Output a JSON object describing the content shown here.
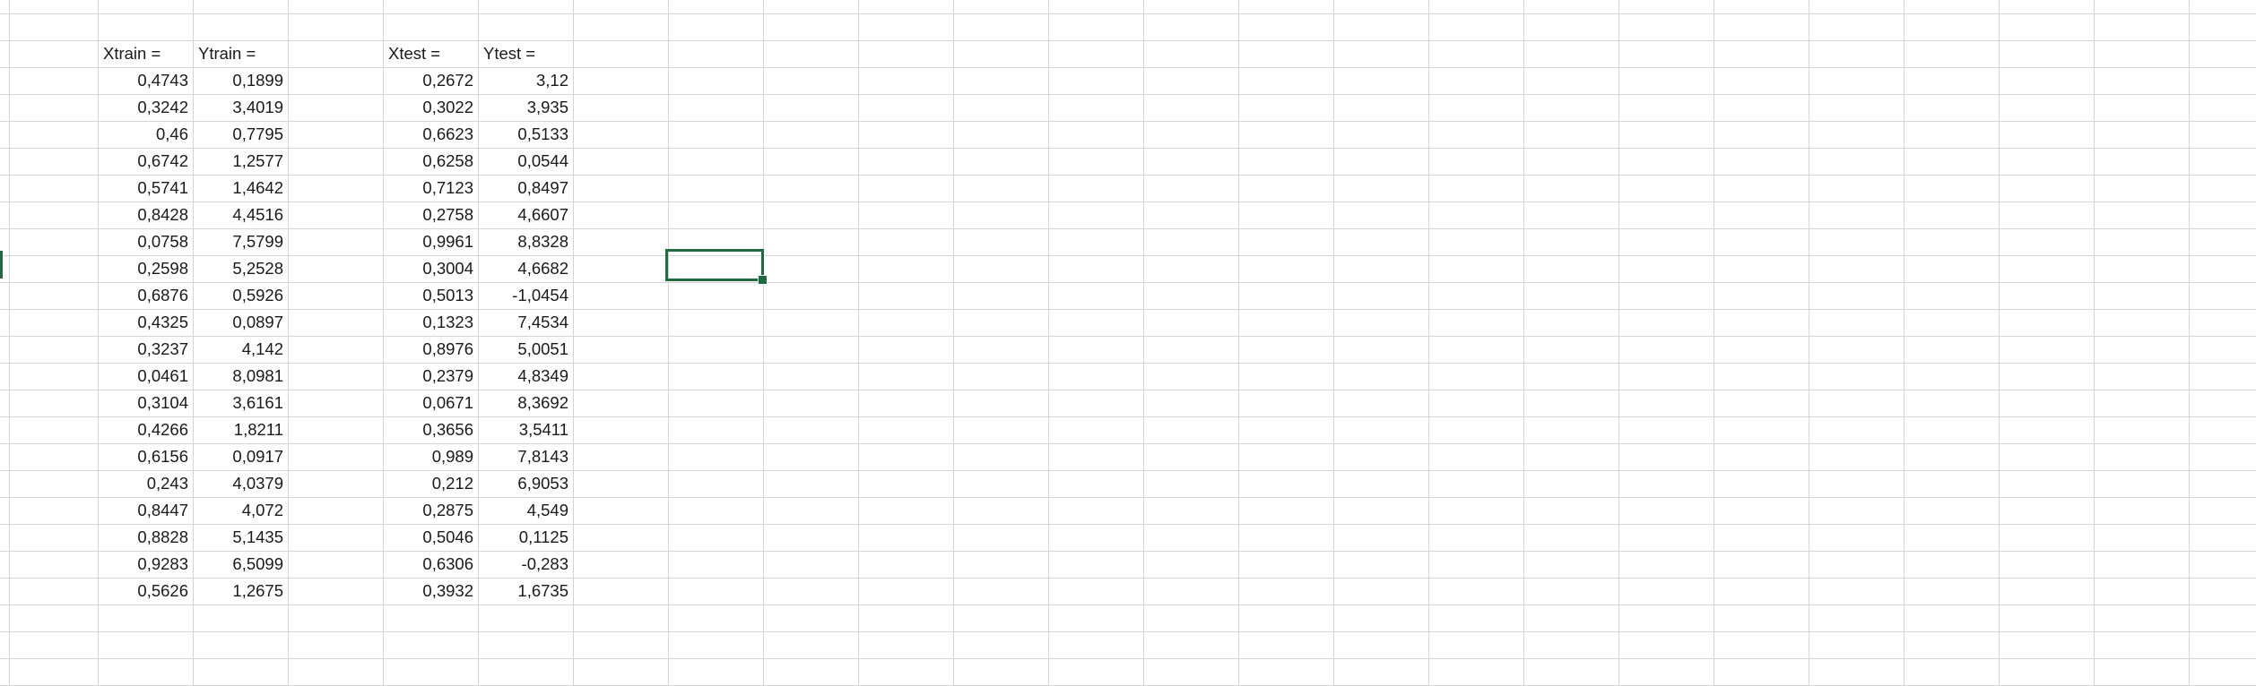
{
  "sheet": {
    "headers": [
      "Xtrain =",
      "Ytrain =",
      "Xtest =",
      "Ytest ="
    ],
    "xtrain": [
      "0,4743",
      "0,3242",
      "0,46",
      "0,6742",
      "0,5741",
      "0,8428",
      "0,0758",
      "0,2598",
      "0,6876",
      "0,4325",
      "0,3237",
      "0,0461",
      "0,3104",
      "0,4266",
      "0,6156",
      "0,243",
      "0,8447",
      "0,8828",
      "0,9283",
      "0,5626"
    ],
    "ytrain": [
      "0,1899",
      "3,4019",
      "0,7795",
      "1,2577",
      "1,4642",
      "4,4516",
      "7,5799",
      "5,2528",
      "0,5926",
      "0,0897",
      "4,142",
      "8,0981",
      "3,6161",
      "1,8211",
      "0,0917",
      "4,0379",
      "4,072",
      "5,1435",
      "6,5099",
      "1,2675"
    ],
    "xtest": [
      "0,2672",
      "0,3022",
      "0,6623",
      "0,6258",
      "0,7123",
      "0,2758",
      "0,9961",
      "0,3004",
      "0,5013",
      "0,1323",
      "0,8976",
      "0,2379",
      "0,0671",
      "0,3656",
      "0,989",
      "0,212",
      "0,2875",
      "0,5046",
      "0,6306",
      "0,3932"
    ],
    "ytest": [
      "3,12",
      "3,935",
      "0,5133",
      "0,0544",
      "0,8497",
      "4,6607",
      "8,8328",
      "4,6682",
      "-1,0454",
      "7,4534",
      "5,0051",
      "4,8349",
      "8,3692",
      "3,5411",
      "7,8143",
      "6,9053",
      "4,549",
      "0,1125",
      "-0,283",
      "1,6735"
    ]
  },
  "colors": {
    "accent": "#1e6b41",
    "gridline": "#d4d4d4"
  }
}
